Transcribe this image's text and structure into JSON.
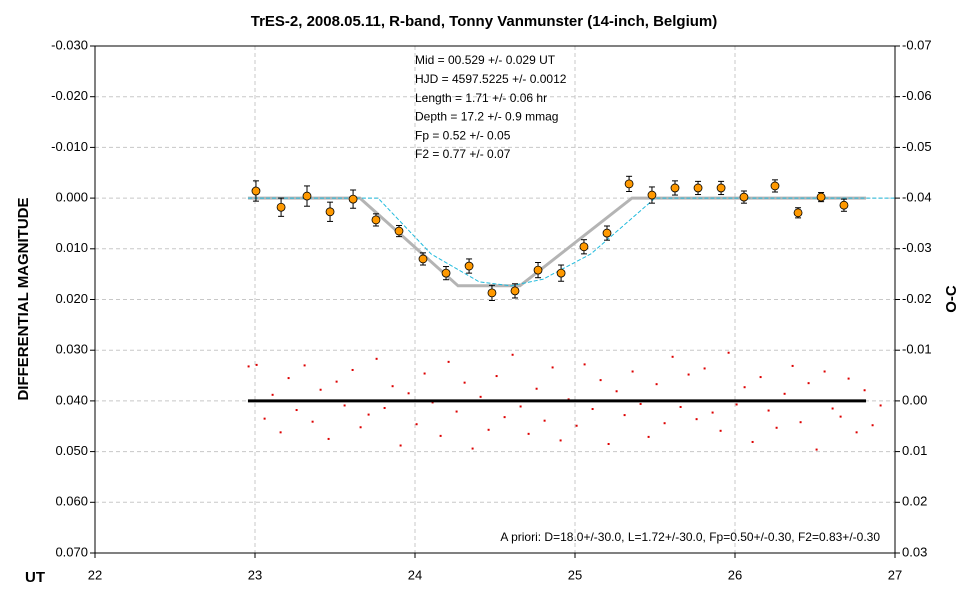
{
  "chart_data": {
    "type": "scatter",
    "title": "TrES-2, 2008.05.11, R-band, Tonny Vanmunster (14-inch, Belgium)",
    "x_label": "UT",
    "y_label": "DIFFERENTIAL MAGNITUDE",
    "y2_label": "O-C",
    "annotations": [
      "Mid  = 00.529 +/- 0.029 UT",
      "HJD = 4597.5225 +/- 0.0012",
      "Length = 1.71 +/- 0.06 hr",
      "Depth = 17.2 +/- 0.9 mmag",
      "Fp = 0.52 +/- 0.05",
      "F2 = 0.77 +/- 0.07"
    ],
    "footnote": "A priori: D=18.0+/-30.0, L=1.72+/-30.0, Fp=0.50+/-0.30, F2=0.83+/-0.30",
    "xlim": [
      22,
      27
    ],
    "xticks": [
      22,
      23,
      24,
      25,
      26,
      27
    ],
    "ylim": [
      -0.03,
      0.07
    ],
    "yticks": [
      {
        "value": -0.03,
        "label": "-0.030"
      },
      {
        "value": -0.02,
        "label": "-0.020"
      },
      {
        "value": -0.01,
        "label": "-0.010"
      },
      {
        "value": 0,
        "label": "0.000"
      },
      {
        "value": 0.01,
        "label": "0.010"
      },
      {
        "value": 0.02,
        "label": "0.020"
      },
      {
        "value": 0.03,
        "label": "0.030"
      },
      {
        "value": 0.04,
        "label": "0.040"
      },
      {
        "value": 0.05,
        "label": "0.050"
      },
      {
        "value": 0.06,
        "label": "0.060"
      },
      {
        "value": 0.07,
        "label": "0.070"
      }
    ],
    "y2lim": [
      -0.07,
      0.03
    ],
    "y2ticks": [
      -0.07,
      -0.06,
      -0.05,
      -0.04,
      -0.03,
      -0.02,
      -0.01,
      {
        "value": 0,
        "label": "0.00"
      },
      0.01,
      0.02,
      0.03
    ],
    "grid": true,
    "series": [
      {
        "style": "line",
        "color": "#b4b4b4",
        "x": [
          22.956,
          23.656,
          24.269,
          24.656,
          25.356,
          26.819
        ],
        "values": [
          0,
          0,
          0.0173,
          0.0173,
          0,
          0
        ]
      },
      {
        "style": "dashed",
        "color": "#22bbdd",
        "x": [
          22.956,
          23.769,
          24.1,
          24.4,
          24.6,
          24.8,
          25.1,
          25.5,
          27
        ],
        "values": [
          0,
          0,
          0.011,
          0.0165,
          0.0173,
          0.016,
          0.011,
          0,
          0
        ]
      },
      {
        "style": "points",
        "color": "#ff9900",
        "x": [
          23.006,
          23.163,
          23.325,
          23.469,
          23.613,
          23.756,
          23.9,
          24.05,
          24.194,
          24.338,
          24.481,
          24.625,
          24.769,
          24.913,
          25.056,
          25.2,
          25.338,
          25.481,
          25.625,
          25.769,
          25.913,
          26.056,
          26.25,
          26.394,
          26.538,
          26.681
        ],
        "values": [
          -0.0014,
          0.0018,
          -0.0004,
          0.0027,
          0.0002,
          0.0043,
          0.0065,
          0.012,
          0.0148,
          0.0134,
          0.0187,
          0.0183,
          0.0142,
          0.0148,
          0.0096,
          0.0069,
          -0.0028,
          -0.0006,
          -0.002,
          -0.002,
          -0.002,
          -0.0002,
          -0.0024,
          0.0029,
          -0.0002,
          0.0014
        ],
        "errors": [
          0.002,
          0.0018,
          0.002,
          0.0019,
          0.0018,
          0.0012,
          0.0011,
          0.0012,
          0.0013,
          0.0014,
          0.0015,
          0.0014,
          0.0015,
          0.0016,
          0.0014,
          0.0014,
          0.0015,
          0.0016,
          0.0014,
          0.0013,
          0.0013,
          0.0012,
          0.0012,
          0.001,
          0.0009,
          0.0012
        ]
      },
      {
        "style": "dots",
        "color": "#dd0000",
        "axis": "y2",
        "x": [
          22.96,
          23.01,
          23.06,
          23.11,
          23.16,
          23.21,
          23.26,
          23.31,
          23.36,
          23.41,
          23.46,
          23.51,
          23.56,
          23.61,
          23.66,
          23.71,
          23.76,
          23.81,
          23.86,
          23.91,
          23.96,
          24.01,
          24.06,
          24.11,
          24.16,
          24.21,
          24.26,
          24.31,
          24.36,
          24.41,
          24.46,
          24.51,
          24.56,
          24.61,
          24.66,
          24.71,
          24.76,
          24.81,
          24.86,
          24.91,
          24.96,
          25.01,
          25.06,
          25.11,
          25.16,
          25.21,
          25.26,
          25.31,
          25.36,
          25.41,
          25.46,
          25.51,
          25.56,
          25.61,
          25.66,
          25.71,
          25.76,
          25.81,
          25.86,
          25.91,
          25.96,
          26.01,
          26.06,
          26.11,
          26.16,
          26.21,
          26.26,
          26.31,
          26.36,
          26.41,
          26.46,
          26.51,
          26.56,
          26.61,
          26.66,
          26.71,
          26.76,
          26.81,
          26.86,
          26.91
        ],
        "values": [
          -0.0068,
          -0.0071,
          0.0035,
          -0.0012,
          0.0062,
          -0.0045,
          0.0018,
          -0.007,
          0.0041,
          -0.0022,
          0.0075,
          -0.0038,
          0.0009,
          -0.0061,
          0.0052,
          0.0027,
          -0.0083,
          0.0014,
          -0.0029,
          0.0088,
          -0.0015,
          0.0046,
          -0.0054,
          0.0003,
          0.0069,
          -0.0077,
          0.0021,
          -0.0036,
          0.0094,
          -0.0008,
          0.0057,
          -0.0049,
          0.0032,
          -0.0091,
          0.0011,
          0.0065,
          -0.0024,
          0.0039,
          -0.0066,
          0.0078,
          -0.0003,
          0.0049,
          -0.0072,
          0.0016,
          -0.0041,
          0.0085,
          -0.0019,
          0.0028,
          -0.0058,
          0.0006,
          0.0071,
          -0.0033,
          0.0044,
          -0.0087,
          0.0012,
          -0.0052,
          0.0036,
          -0.0064,
          0.0023,
          0.0059,
          -0.0095,
          0.0007,
          -0.0027,
          0.0081,
          -0.0047,
          0.0019,
          0.0053,
          -0.0014,
          -0.0069,
          0.0042,
          -0.0035,
          0.0096,
          -0.0058,
          0.0015,
          0.0031,
          -0.0044,
          0.0062,
          -0.0021,
          0.0048,
          0.0009
        ]
      },
      {
        "style": "line",
        "color": "#000000",
        "axis": "y2",
        "x": [
          22.956,
          26.819
        ],
        "values": [
          0,
          0
        ]
      }
    ]
  }
}
